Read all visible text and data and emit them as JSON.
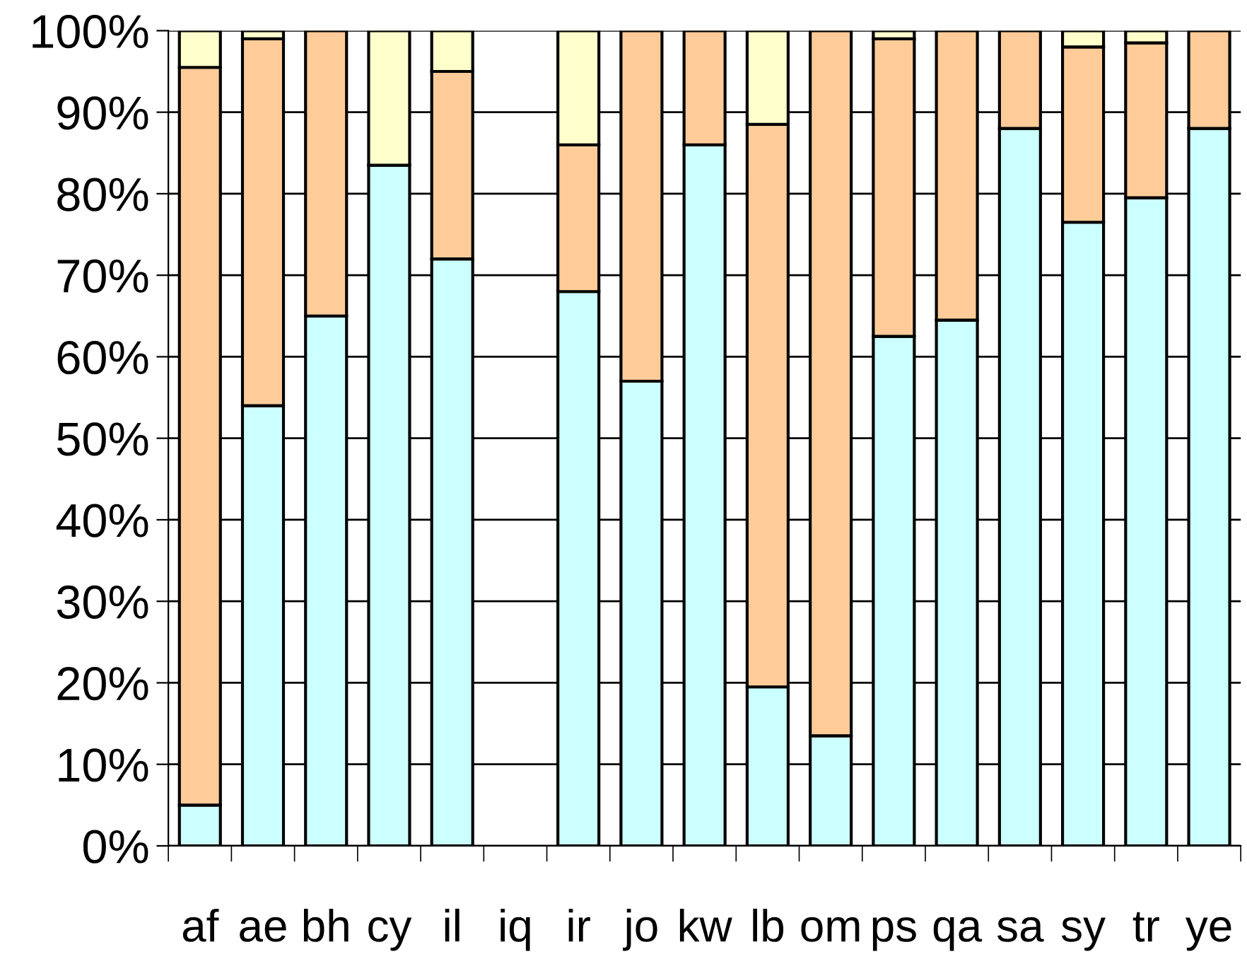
{
  "chart_data": {
    "type": "bar",
    "stacked": true,
    "categories": [
      "af",
      "ae",
      "bh",
      "cy",
      "il",
      "iq",
      "ir",
      "jo",
      "kw",
      "lb",
      "om",
      "ps",
      "qa",
      "sa",
      "sy",
      "tr",
      "ye"
    ],
    "series": [
      {
        "color": "#ccffff",
        "values": [
          5,
          54,
          65,
          83.5,
          72,
          null,
          68,
          57,
          86,
          19.5,
          13.5,
          62.5,
          64.5,
          88,
          76.5,
          79.5,
          88
        ]
      },
      {
        "color": "#ffcc99",
        "values": [
          90.5,
          45,
          35,
          null,
          23,
          null,
          18,
          43,
          14,
          69,
          86.5,
          36.5,
          35.5,
          12,
          21.5,
          19,
          12
        ]
      },
      {
        "color": "#ffffcc",
        "values": [
          4.5,
          1,
          null,
          16.5,
          5,
          null,
          14,
          null,
          null,
          11.5,
          null,
          1,
          null,
          null,
          2,
          1.5,
          null
        ]
      }
    ],
    "ylim": [
      0,
      100
    ],
    "yticks": [
      {
        "value": 0,
        "label": "0%"
      },
      {
        "value": 10,
        "label": "10%"
      },
      {
        "value": 20,
        "label": "20%"
      },
      {
        "value": 30,
        "label": "30%"
      },
      {
        "value": 40,
        "label": "40%"
      },
      {
        "value": 50,
        "label": "50%"
      },
      {
        "value": 60,
        "label": "60%"
      },
      {
        "value": 70,
        "label": "70%"
      },
      {
        "value": 80,
        "label": "80%"
      },
      {
        "value": 90,
        "label": "90%"
      },
      {
        "value": 100,
        "label": "100%"
      }
    ],
    "grid": "y",
    "legend": false
  }
}
